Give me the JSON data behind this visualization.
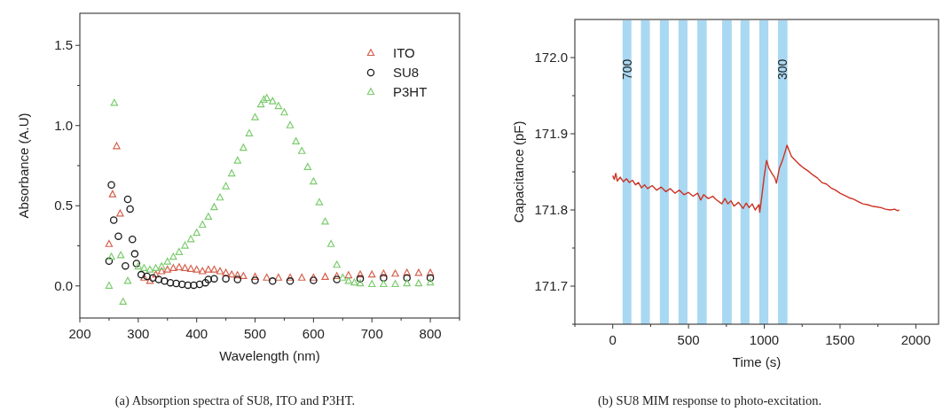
{
  "chart_data": [
    {
      "type": "scatter",
      "title": "(a)  Absorption spectra of SU8, ITO and P3HT.",
      "xlabel": "Wavelength (nm)",
      "ylabel": "Absorbance (A.U)",
      "xlim": [
        200,
        850
      ],
      "ylim": [
        -0.2,
        1.7
      ],
      "xticks": [
        200,
        {
          "value": 250,
          "label": null
        },
        300,
        {
          "value": 350,
          "label": null
        },
        400,
        {
          "value": 450,
          "label": null
        },
        500,
        {
          "value": 550,
          "label": null
        },
        600,
        {
          "value": 650,
          "label": null
        },
        700,
        {
          "value": 750,
          "label": null
        },
        800,
        {
          "value": 850,
          "label": null
        }
      ],
      "yticks": [
        {
          "value": 0,
          "label": "0.0"
        },
        {
          "value": 0.25,
          "label": null
        },
        {
          "value": 0.5,
          "label": "0.5"
        },
        {
          "value": 0.75,
          "label": null
        },
        {
          "value": 1,
          "label": "1.0"
        },
        {
          "value": 1.25,
          "label": null
        },
        {
          "value": 1.5,
          "label": "1.5"
        }
      ],
      "legend": "top right",
      "grid": false,
      "series": [
        {
          "name": "ITO",
          "color": "#d6604d",
          "marker": "triangle",
          "x": [
            250,
            256,
            263,
            269,
            310,
            320,
            330,
            340,
            350,
            360,
            370,
            380,
            390,
            400,
            410,
            420,
            430,
            440,
            450,
            460,
            470,
            480,
            500,
            520,
            540,
            560,
            580,
            600,
            620,
            640,
            660,
            680,
            700,
            720,
            740,
            760,
            780,
            800
          ],
          "values": [
            0.26,
            0.57,
            0.87,
            0.45,
            0.05,
            0.03,
            0.07,
            0.09,
            0.1,
            0.11,
            0.115,
            0.11,
            0.105,
            0.1,
            0.09,
            0.1,
            0.1,
            0.09,
            0.08,
            0.07,
            0.065,
            0.06,
            0.055,
            0.05,
            0.05,
            0.05,
            0.05,
            0.05,
            0.055,
            0.06,
            0.065,
            0.07,
            0.07,
            0.075,
            0.075,
            0.08,
            0.08,
            0.08
          ]
        },
        {
          "name": "SU8",
          "color": "#1a1a1a",
          "marker": "circle",
          "x": [
            250,
            254,
            258,
            266,
            278,
            282,
            286,
            290,
            294,
            297,
            305,
            315,
            325,
            335,
            345,
            355,
            365,
            375,
            385,
            395,
            405,
            415,
            420,
            430,
            450,
            470,
            500,
            530,
            560,
            600,
            640,
            680,
            720,
            760,
            800
          ],
          "values": [
            0.155,
            0.63,
            0.41,
            0.31,
            0.125,
            0.54,
            0.48,
            0.29,
            0.2,
            0.14,
            0.07,
            0.06,
            0.05,
            0.04,
            0.03,
            0.02,
            0.015,
            0.01,
            0.005,
            0.005,
            0.01,
            0.02,
            0.04,
            0.045,
            0.045,
            0.04,
            0.035,
            0.03,
            0.03,
            0.035,
            0.04,
            0.045,
            0.05,
            0.05,
            0.05
          ]
        },
        {
          "name": "P3HT",
          "color": "#7ccc6e",
          "marker": "triangle",
          "x": [
            250,
            254,
            259,
            270,
            274,
            282,
            300,
            310,
            320,
            330,
            340,
            350,
            360,
            370,
            380,
            390,
            400,
            410,
            420,
            430,
            440,
            450,
            460,
            470,
            480,
            490,
            500,
            510,
            515,
            520,
            530,
            540,
            550,
            560,
            570,
            580,
            590,
            600,
            610,
            620,
            630,
            640,
            650,
            660,
            670,
            680,
            700,
            720,
            740,
            760,
            780,
            800
          ],
          "values": [
            0.0,
            0.18,
            1.14,
            0.19,
            -0.1,
            0.03,
            0.12,
            0.11,
            0.1,
            0.11,
            0.12,
            0.15,
            0.18,
            0.21,
            0.25,
            0.29,
            0.33,
            0.38,
            0.43,
            0.49,
            0.55,
            0.62,
            0.7,
            0.78,
            0.86,
            0.95,
            1.05,
            1.13,
            1.16,
            1.17,
            1.15,
            1.12,
            1.08,
            1.0,
            0.9,
            0.84,
            0.74,
            0.65,
            0.52,
            0.4,
            0.26,
            0.13,
            0.05,
            0.03,
            0.02,
            0.015,
            0.01,
            0.01,
            0.01,
            0.015,
            0.015,
            0.02
          ]
        }
      ]
    },
    {
      "type": "line",
      "title": "(b)  SU8 MIM response to photo-excitation.",
      "xlabel": "Time (s)",
      "ylabel": "Capacitance (pF)",
      "xlim": [
        -250,
        2150
      ],
      "ylim": [
        171.65,
        172.05
      ],
      "xticks": [
        {
          "value": -250,
          "label": null
        },
        0,
        {
          "value": 250,
          "label": null
        },
        500,
        {
          "value": 750,
          "label": null
        },
        1000,
        {
          "value": 1250,
          "label": null
        },
        1500,
        {
          "value": 1750,
          "label": null
        },
        2000
      ],
      "yticks": [
        {
          "value": 171.65,
          "label": null
        },
        {
          "value": 171.7,
          "label": "171.7"
        },
        {
          "value": 171.75,
          "label": null
        },
        {
          "value": 171.8,
          "label": "171.8"
        },
        {
          "value": 171.85,
          "label": null
        },
        {
          "value": 171.9,
          "label": "171.9"
        },
        {
          "value": 171.95,
          "label": null
        },
        {
          "value": 172,
          "label": "172.0"
        }
      ],
      "grid": false,
      "bands": [
        {
          "axis": "x",
          "from": 65,
          "to": 123,
          "label": "700",
          "color": "#a9d8f2"
        },
        {
          "axis": "x",
          "from": 186,
          "to": 245,
          "color": "#a9d8f2"
        },
        {
          "axis": "x",
          "from": 311,
          "to": 370,
          "color": "#a9d8f2"
        },
        {
          "axis": "x",
          "from": 434,
          "to": 493,
          "color": "#a9d8f2"
        },
        {
          "axis": "x",
          "from": 558,
          "to": 620,
          "color": "#a9d8f2"
        },
        {
          "axis": "x",
          "from": 722,
          "to": 785,
          "color": "#a9d8f2"
        },
        {
          "axis": "x",
          "from": 843,
          "to": 902,
          "color": "#a9d8f2"
        },
        {
          "axis": "x",
          "from": 967,
          "to": 1027,
          "color": "#a9d8f2"
        },
        {
          "axis": "x",
          "from": 1090,
          "to": 1153,
          "label": "300",
          "color": "#a9d8f2"
        }
      ],
      "series": [
        {
          "color": "#cc3322",
          "x": [
            0,
            10,
            20,
            30,
            50,
            70,
            90,
            110,
            130,
            150,
            170,
            190,
            210,
            230,
            260,
            290,
            320,
            350,
            380,
            410,
            440,
            470,
            500,
            530,
            560,
            580,
            600,
            630,
            660,
            680,
            720,
            740,
            760,
            780,
            800,
            830,
            860,
            880,
            900,
            920,
            940,
            965,
            970,
            985,
            1000,
            1015,
            1030,
            1050,
            1070,
            1080,
            1100,
            1120,
            1140,
            1150,
            1160,
            1180,
            1200,
            1230,
            1260,
            1290,
            1320,
            1350,
            1380,
            1410,
            1440,
            1470,
            1500,
            1530,
            1560,
            1590,
            1620,
            1650,
            1680,
            1710,
            1740,
            1770,
            1800,
            1830,
            1860,
            1880,
            1890
          ],
          "values": [
            171.845,
            171.84,
            171.848,
            171.838,
            171.843,
            171.837,
            171.841,
            171.836,
            171.839,
            171.833,
            171.836,
            171.829,
            171.833,
            171.828,
            171.832,
            171.826,
            171.83,
            171.824,
            171.828,
            171.822,
            171.826,
            171.82,
            171.823,
            171.818,
            171.822,
            171.813,
            171.82,
            171.815,
            171.818,
            171.814,
            171.808,
            171.815,
            171.808,
            171.812,
            171.805,
            171.81,
            171.802,
            171.809,
            171.803,
            171.808,
            171.8,
            171.807,
            171.797,
            171.82,
            171.845,
            171.865,
            171.855,
            171.848,
            171.842,
            171.835,
            171.855,
            171.865,
            171.878,
            171.885,
            171.88,
            171.87,
            171.866,
            171.86,
            171.855,
            171.851,
            171.846,
            171.842,
            171.836,
            171.834,
            171.829,
            171.826,
            171.822,
            171.819,
            171.816,
            171.814,
            171.811,
            171.808,
            171.807,
            171.805,
            171.804,
            171.803,
            171.801,
            171.8,
            171.801,
            171.799,
            171.8
          ]
        }
      ]
    }
  ]
}
